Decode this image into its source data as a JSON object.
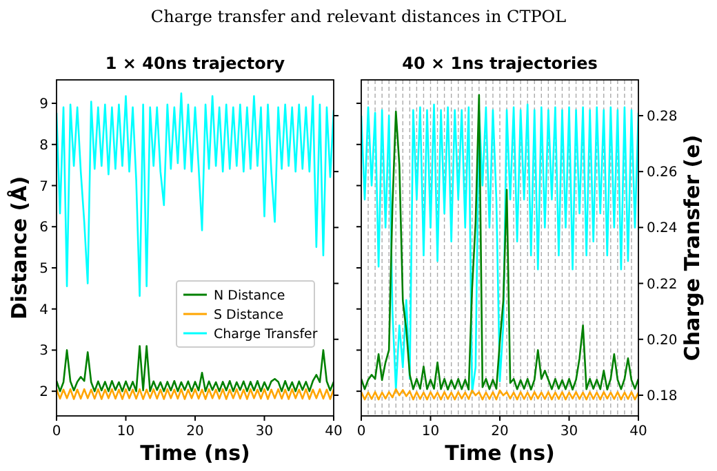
{
  "chart_data": [
    {
      "type": "line",
      "title": "1 × 40ns trajectory",
      "annotations": [
        "Charge transfer and relevant distances in CTPOL"
      ],
      "xlabel": "Time (ns)",
      "ylabel": "Distance (Å)",
      "xlim": [
        0,
        40
      ],
      "xticks": [
        0,
        10,
        20,
        30,
        40
      ],
      "ylim": [
        1.4,
        9.57
      ],
      "yticks": [
        2,
        3,
        4,
        5,
        6,
        7,
        8,
        9
      ],
      "y2lim": [
        0.1726,
        0.2928
      ],
      "tick_labels": [
        "x",
        "y"
      ],
      "legend": "lower right",
      "grid": false,
      "x": [
        0,
        0.5,
        1,
        1.5,
        2,
        2.5,
        3,
        3.5,
        4,
        4.5,
        5,
        5.5,
        6,
        6.5,
        7,
        7.5,
        8,
        8.5,
        9,
        9.5,
        10,
        10.5,
        11,
        11.5,
        12,
        12.5,
        13,
        13.5,
        14,
        14.5,
        15,
        15.5,
        16,
        16.5,
        17,
        17.5,
        18,
        18.5,
        19,
        19.5,
        20,
        20.5,
        21,
        21.5,
        22,
        22.5,
        23,
        23.5,
        24,
        24.5,
        25,
        25.5,
        26,
        26.5,
        27,
        27.5,
        28,
        28.5,
        29,
        29.5,
        30,
        30.5,
        31,
        31.5,
        32,
        32.5,
        33,
        33.5,
        34,
        34.5,
        35,
        35.5,
        36,
        36.5,
        37,
        37.5,
        38,
        38.5,
        39,
        39.5,
        40
      ],
      "series": [
        {
          "name": "N Distance",
          "color": "#008000",
          "values": [
            2.25,
            2.0,
            2.22,
            3.0,
            2.24,
            2.02,
            2.23,
            2.35,
            2.25,
            2.95,
            2.22,
            2.0,
            2.24,
            2.02,
            2.23,
            2.0,
            2.25,
            2.03,
            2.22,
            2.0,
            2.24,
            2.02,
            2.23,
            2.0,
            3.1,
            2.02,
            3.1,
            2.0,
            2.24,
            2.03,
            2.22,
            2.0,
            2.23,
            2.02,
            2.25,
            2.0,
            2.22,
            2.03,
            2.24,
            2.0,
            2.23,
            2.02,
            2.45,
            2.0,
            2.24,
            2.03,
            2.22,
            2.0,
            2.23,
            2.02,
            2.25,
            2.0,
            2.22,
            2.03,
            2.24,
            2.0,
            2.23,
            2.02,
            2.25,
            2.0,
            2.22,
            2.03,
            2.24,
            2.3,
            2.23,
            2.0,
            2.25,
            2.02,
            2.22,
            2.0,
            2.24,
            2.03,
            2.23,
            2.0,
            2.25,
            2.4,
            2.22,
            3.0,
            2.24,
            2.02,
            2.23
          ]
        },
        {
          "name": "S Distance",
          "color": "#ffa500",
          "values": [
            2.05,
            1.82,
            2.04,
            1.83,
            2.05,
            1.81,
            2.04,
            1.82,
            2.05,
            1.83,
            2.04,
            1.82,
            2.05,
            1.81,
            2.04,
            1.83,
            2.05,
            1.82,
            2.04,
            1.81,
            2.05,
            1.83,
            2.04,
            1.82,
            2.05,
            1.81,
            2.04,
            1.83,
            2.05,
            1.82,
            2.04,
            1.81,
            2.05,
            1.83,
            2.04,
            1.82,
            2.05,
            1.81,
            2.04,
            1.83,
            2.05,
            1.82,
            2.04,
            1.81,
            2.05,
            1.83,
            2.04,
            1.82,
            2.05,
            1.81,
            2.04,
            1.83,
            2.05,
            1.82,
            2.04,
            1.81,
            2.05,
            1.83,
            2.04,
            1.82,
            2.05,
            1.81,
            2.04,
            1.83,
            2.05,
            1.82,
            2.04,
            1.81,
            2.05,
            1.83,
            2.04,
            1.82,
            2.05,
            1.81,
            2.04,
            1.83,
            2.05,
            1.82,
            2.04,
            1.81,
            2.05
          ]
        },
        {
          "name": "Charge Transfer",
          "color": "#00ffff",
          "axis": "y2",
          "values": [
            0.281,
            0.245,
            0.283,
            0.219,
            0.284,
            0.262,
            0.283,
            0.26,
            0.242,
            0.22,
            0.285,
            0.261,
            0.283,
            0.262,
            0.284,
            0.259,
            0.283,
            0.261,
            0.284,
            0.262,
            0.287,
            0.26,
            0.283,
            0.257,
            0.2155,
            0.284,
            0.219,
            0.283,
            0.262,
            0.283,
            0.26,
            0.248,
            0.284,
            0.261,
            0.283,
            0.263,
            0.288,
            0.261,
            0.284,
            0.26,
            0.283,
            0.262,
            0.239,
            0.284,
            0.261,
            0.287,
            0.262,
            0.283,
            0.26,
            0.284,
            0.261,
            0.283,
            0.262,
            0.284,
            0.26,
            0.283,
            0.261,
            0.287,
            0.262,
            0.283,
            0.244,
            0.284,
            0.26,
            0.242,
            0.283,
            0.261,
            0.284,
            0.262,
            0.283,
            0.26,
            0.284,
            0.261,
            0.283,
            0.26,
            0.287,
            0.233,
            0.284,
            0.23,
            0.283,
            0.258,
            0.282
          ]
        }
      ]
    },
    {
      "type": "line",
      "title": "40 × 1ns trajectories",
      "xlabel": "Time (ns)",
      "y2label": "Charge Transfer (e)",
      "xlim": [
        0,
        40
      ],
      "xticks": [
        0,
        10,
        20,
        30,
        40
      ],
      "ylim": [
        1.4,
        9.57
      ],
      "y2lim": [
        0.1726,
        0.2928
      ],
      "y2ticks": [
        0.18,
        {
          "value": 0.2,
          "label": "0.20"
        },
        0.22,
        0.24,
        0.26,
        0.28
      ],
      "tick_labels": [
        "x",
        "y2"
      ],
      "grid": false,
      "ref_lines": [
        {
          "axis": "x",
          "value": 1,
          "color": "#aaaaaa",
          "line_style": "dashed"
        },
        {
          "axis": "x",
          "value": 2,
          "color": "#aaaaaa",
          "line_style": "dashed"
        },
        {
          "axis": "x",
          "value": 3,
          "color": "#aaaaaa",
          "line_style": "dashed"
        },
        {
          "axis": "x",
          "value": 4,
          "color": "#aaaaaa",
          "line_style": "dashed"
        },
        {
          "axis": "x",
          "value": 5,
          "color": "#aaaaaa",
          "line_style": "dashed"
        },
        {
          "axis": "x",
          "value": 6,
          "color": "#aaaaaa",
          "line_style": "dashed"
        },
        {
          "axis": "x",
          "value": 7,
          "color": "#aaaaaa",
          "line_style": "dashed"
        },
        {
          "axis": "x",
          "value": 8,
          "color": "#aaaaaa",
          "line_style": "dashed"
        },
        {
          "axis": "x",
          "value": 9,
          "color": "#aaaaaa",
          "line_style": "dashed"
        },
        {
          "axis": "x",
          "value": 10,
          "color": "#aaaaaa",
          "line_style": "dashed"
        },
        {
          "axis": "x",
          "value": 11,
          "color": "#aaaaaa",
          "line_style": "dashed"
        },
        {
          "axis": "x",
          "value": 12,
          "color": "#aaaaaa",
          "line_style": "dashed"
        },
        {
          "axis": "x",
          "value": 13,
          "color": "#aaaaaa",
          "line_style": "dashed"
        },
        {
          "axis": "x",
          "value": 14,
          "color": "#aaaaaa",
          "line_style": "dashed"
        },
        {
          "axis": "x",
          "value": 15,
          "color": "#aaaaaa",
          "line_style": "dashed"
        },
        {
          "axis": "x",
          "value": 16,
          "color": "#aaaaaa",
          "line_style": "dashed"
        },
        {
          "axis": "x",
          "value": 17,
          "color": "#aaaaaa",
          "line_style": "dashed"
        },
        {
          "axis": "x",
          "value": 18,
          "color": "#aaaaaa",
          "line_style": "dashed"
        },
        {
          "axis": "x",
          "value": 19,
          "color": "#aaaaaa",
          "line_style": "dashed"
        },
        {
          "axis": "x",
          "value": 20,
          "color": "#aaaaaa",
          "line_style": "dashed"
        },
        {
          "axis": "x",
          "value": 21,
          "color": "#aaaaaa",
          "line_style": "dashed"
        },
        {
          "axis": "x",
          "value": 22,
          "color": "#aaaaaa",
          "line_style": "dashed"
        },
        {
          "axis": "x",
          "value": 23,
          "color": "#aaaaaa",
          "line_style": "dashed"
        },
        {
          "axis": "x",
          "value": 24,
          "color": "#aaaaaa",
          "line_style": "dashed"
        },
        {
          "axis": "x",
          "value": 25,
          "color": "#aaaaaa",
          "line_style": "dashed"
        },
        {
          "axis": "x",
          "value": 26,
          "color": "#aaaaaa",
          "line_style": "dashed"
        },
        {
          "axis": "x",
          "value": 27,
          "color": "#aaaaaa",
          "line_style": "dashed"
        },
        {
          "axis": "x",
          "value": 28,
          "color": "#aaaaaa",
          "line_style": "dashed"
        },
        {
          "axis": "x",
          "value": 29,
          "color": "#aaaaaa",
          "line_style": "dashed"
        },
        {
          "axis": "x",
          "value": 30,
          "color": "#aaaaaa",
          "line_style": "dashed"
        },
        {
          "axis": "x",
          "value": 31,
          "color": "#aaaaaa",
          "line_style": "dashed"
        },
        {
          "axis": "x",
          "value": 32,
          "color": "#aaaaaa",
          "line_style": "dashed"
        },
        {
          "axis": "x",
          "value": 33,
          "color": "#aaaaaa",
          "line_style": "dashed"
        },
        {
          "axis": "x",
          "value": 34,
          "color": "#aaaaaa",
          "line_style": "dashed"
        },
        {
          "axis": "x",
          "value": 35,
          "color": "#aaaaaa",
          "line_style": "dashed"
        },
        {
          "axis": "x",
          "value": 36,
          "color": "#aaaaaa",
          "line_style": "dashed"
        },
        {
          "axis": "x",
          "value": 37,
          "color": "#aaaaaa",
          "line_style": "dashed"
        },
        {
          "axis": "x",
          "value": 38,
          "color": "#aaaaaa",
          "line_style": "dashed"
        },
        {
          "axis": "x",
          "value": 39,
          "color": "#aaaaaa",
          "line_style": "dashed"
        }
      ],
      "x": [
        0,
        0.5,
        1,
        1.5,
        2,
        2.5,
        3,
        3.5,
        4,
        4.5,
        5,
        5.5,
        6,
        6.5,
        7,
        7.5,
        8,
        8.5,
        9,
        9.5,
        10,
        10.5,
        11,
        11.5,
        12,
        12.5,
        13,
        13.5,
        14,
        14.5,
        15,
        15.5,
        16,
        16.5,
        17,
        17.5,
        18,
        18.5,
        19,
        19.5,
        20,
        20.5,
        21,
        21.5,
        22,
        22.5,
        23,
        23.5,
        24,
        24.5,
        25,
        25.5,
        26,
        26.5,
        27,
        27.5,
        28,
        28.5,
        29,
        29.5,
        30,
        30.5,
        31,
        31.5,
        32,
        32.5,
        33,
        33.5,
        34,
        34.5,
        35,
        35.5,
        36,
        36.5,
        37,
        37.5,
        38,
        38.5,
        39,
        39.5,
        40
      ],
      "series": [
        {
          "color": "#008000",
          "values": [
            2.3,
            2.05,
            2.28,
            2.4,
            2.3,
            2.9,
            2.27,
            2.7,
            3.0,
            6.5,
            8.8,
            7.5,
            4.2,
            3.5,
            2.4,
            2.05,
            2.3,
            2.06,
            2.6,
            2.05,
            2.28,
            2.06,
            2.7,
            2.05,
            2.3,
            2.04,
            2.27,
            2.06,
            2.3,
            2.05,
            2.28,
            2.04,
            4.5,
            6.1,
            9.2,
            2.1,
            2.3,
            2.05,
            2.28,
            2.06,
            3.2,
            4.2,
            6.9,
            2.2,
            2.3,
            2.05,
            2.27,
            2.06,
            2.3,
            2.04,
            2.28,
            3.0,
            2.3,
            2.5,
            2.28,
            2.05,
            2.3,
            2.06,
            2.27,
            2.05,
            2.3,
            2.04,
            2.28,
            2.8,
            3.6,
            2.05,
            2.3,
            2.06,
            2.28,
            2.05,
            2.5,
            2.04,
            2.3,
            2.9,
            2.28,
            2.05,
            2.3,
            2.8,
            2.27,
            2.06,
            2.3
          ]
        },
        {
          "color": "#ffa500",
          "values": [
            1.98,
            1.8,
            1.97,
            1.81,
            1.98,
            1.8,
            1.97,
            1.82,
            1.98,
            1.85,
            2.05,
            1.9,
            2.03,
            1.88,
            2.0,
            1.8,
            1.98,
            1.81,
            1.97,
            1.8,
            1.98,
            1.82,
            1.97,
            1.8,
            1.98,
            1.81,
            1.97,
            1.8,
            1.98,
            1.82,
            1.97,
            1.81,
            2.02,
            1.9,
            1.98,
            1.8,
            1.97,
            1.81,
            1.98,
            1.8,
            2.02,
            1.9,
            1.98,
            1.82,
            1.97,
            1.8,
            1.98,
            1.81,
            1.97,
            1.8,
            1.98,
            1.82,
            1.97,
            1.81,
            1.98,
            1.8,
            1.97,
            1.81,
            1.98,
            1.8,
            1.97,
            1.82,
            1.98,
            1.81,
            1.97,
            1.8,
            1.98,
            1.81,
            1.97,
            1.8,
            1.98,
            1.82,
            1.97,
            1.81,
            1.98,
            1.8,
            1.97,
            1.81,
            1.98,
            1.8,
            1.97
          ]
        },
        {
          "color": "#00ffff",
          "axis": "y2",
          "values": [
            0.28,
            0.25,
            0.283,
            0.255,
            0.281,
            0.226,
            0.282,
            0.24,
            0.28,
            0.21,
            0.182,
            0.205,
            0.19,
            0.214,
            0.186,
            0.282,
            0.25,
            0.283,
            0.23,
            0.282,
            0.24,
            0.284,
            0.228,
            0.282,
            0.245,
            0.283,
            0.235,
            0.282,
            0.25,
            0.282,
            0.24,
            0.283,
            0.181,
            0.19,
            0.282,
            0.255,
            0.283,
            0.24,
            0.282,
            0.25,
            0.185,
            0.205,
            0.282,
            0.25,
            0.283,
            0.235,
            0.282,
            0.25,
            0.284,
            0.23,
            0.282,
            0.225,
            0.283,
            0.24,
            0.282,
            0.25,
            0.283,
            0.23,
            0.282,
            0.24,
            0.283,
            0.225,
            0.282,
            0.245,
            0.283,
            0.23,
            0.282,
            0.235,
            0.283,
            0.245,
            0.282,
            0.23,
            0.283,
            0.24,
            0.282,
            0.225,
            0.283,
            0.228,
            0.282,
            0.24,
            0.281
          ]
        }
      ]
    }
  ]
}
